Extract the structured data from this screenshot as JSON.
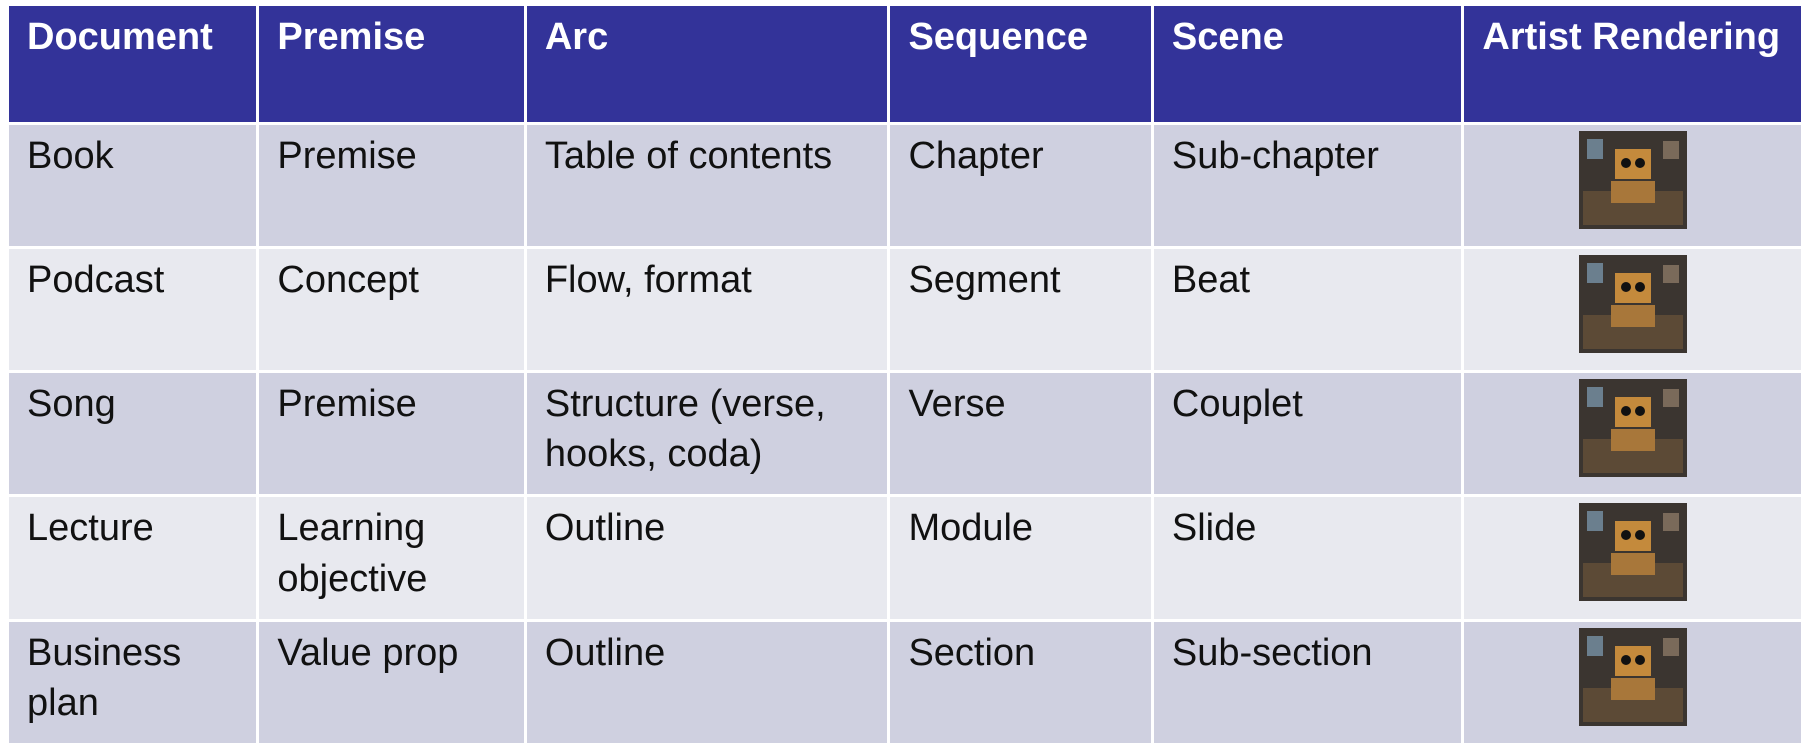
{
  "table": {
    "header": [
      "Document",
      "Premise",
      "Arc",
      "Sequence",
      "Scene",
      "Artist Rendering"
    ],
    "rows": [
      [
        "Book",
        "Premise",
        "Table of contents",
        "Chapter",
        "Sub-chapter"
      ],
      [
        "Podcast",
        "Concept",
        "Flow, format",
        "Segment",
        "Beat"
      ],
      [
        "Song",
        "Premise",
        "Structure (verse, hooks, coda)",
        "Verse",
        "Couplet"
      ],
      [
        "Lecture",
        "Learning objective",
        "Outline",
        "Module",
        "Slide"
      ],
      [
        "Business plan",
        "Value prop",
        "Outline",
        "Section",
        "Sub-section"
      ]
    ]
  }
}
